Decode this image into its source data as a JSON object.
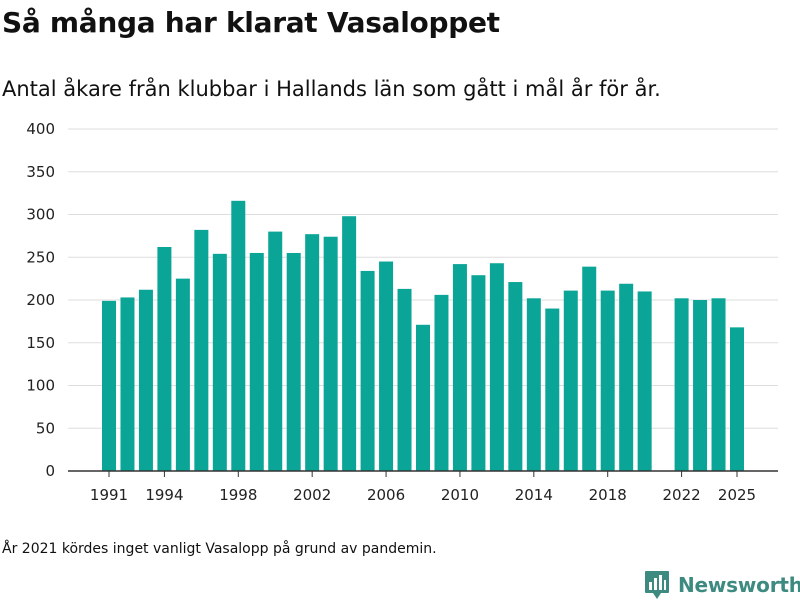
{
  "title": "Så många har klarat Vasaloppet",
  "subtitle": "Antal åkare från klubbar i Hallands län som gått i mål år för år.",
  "footnote": "År 2021 kördes inget vanligt Vasalopp på grund av pandemin.",
  "brand": {
    "name": "Newsworthy",
    "logo_icon": "newsworthy-bar-chart-pin-icon"
  },
  "colors": {
    "bar": "#0ba597",
    "grid": "#dedede",
    "axis": "#333333",
    "brand": "#3d8a80"
  },
  "chart_data": {
    "type": "bar",
    "x": [
      1991,
      1992,
      1993,
      1994,
      1995,
      1996,
      1997,
      1998,
      1999,
      2000,
      2001,
      2002,
      2003,
      2004,
      2005,
      2006,
      2007,
      2008,
      2009,
      2010,
      2011,
      2012,
      2013,
      2014,
      2015,
      2016,
      2017,
      2018,
      2019,
      2020,
      2021,
      2022,
      2023,
      2024,
      2025
    ],
    "values": [
      199,
      203,
      212,
      262,
      225,
      282,
      254,
      316,
      255,
      280,
      255,
      277,
      274,
      298,
      234,
      245,
      213,
      171,
      206,
      242,
      229,
      243,
      221,
      202,
      190,
      211,
      239,
      211,
      219,
      210,
      null,
      202,
      200,
      202,
      168
    ],
    "x_ticks": [
      "1991",
      "1994",
      "1998",
      "2002",
      "2006",
      "2010",
      "2014",
      "2018",
      "2022",
      "2025"
    ],
    "y_ticks": [
      "0",
      "50",
      "100",
      "150",
      "200",
      "250",
      "300",
      "350",
      "400"
    ],
    "ylim": [
      0,
      400
    ],
    "grid": true,
    "legend": "none"
  }
}
